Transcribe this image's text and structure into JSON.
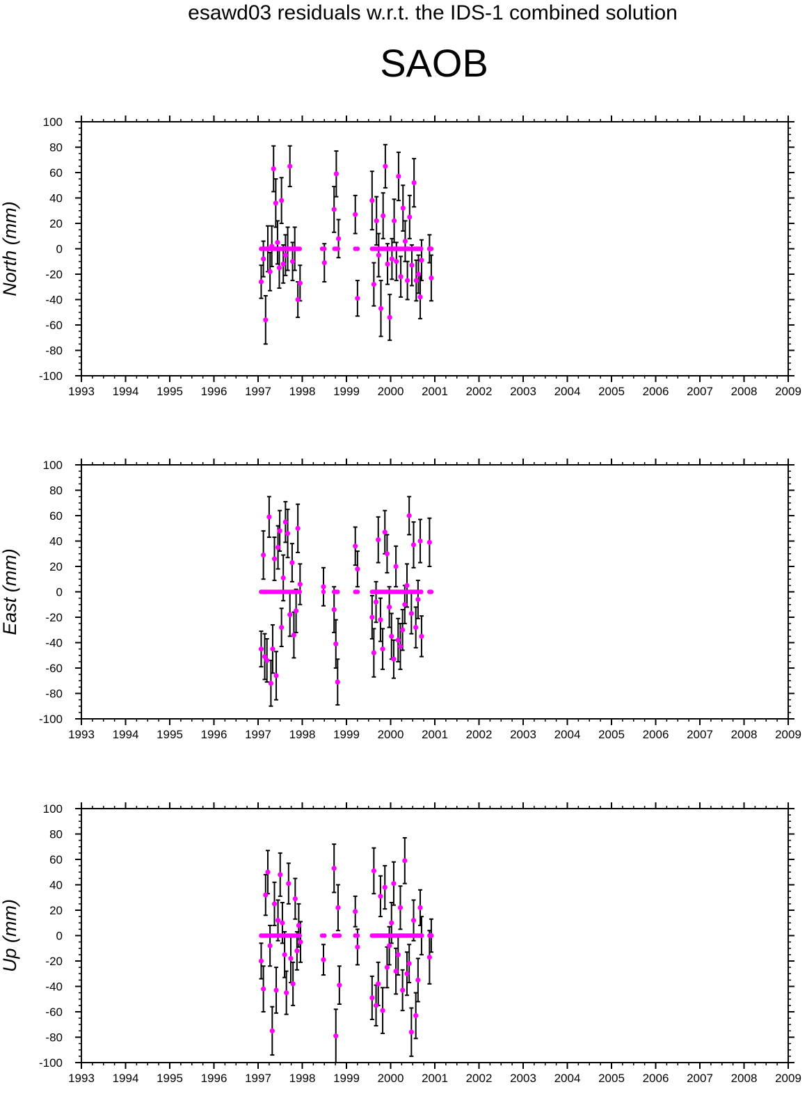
{
  "header": {
    "title": "esawd03 residuals w.r.t. the IDS-1 combined solution",
    "subtitle": "SAOB"
  },
  "colors": {
    "marker": "#ff00ff",
    "errorbar": "#000000",
    "axis": "#000000"
  },
  "chart_data": [
    {
      "type": "scatter",
      "ylabel": "North (mm)",
      "xlim": [
        1993,
        2009
      ],
      "ylim": [
        -100,
        100
      ],
      "xticks": [
        "1993",
        "1994",
        "1995",
        "1996",
        "1997",
        "1998",
        "1999",
        "2000",
        "2001",
        "2002",
        "2003",
        "2004",
        "2005",
        "2006",
        "2007",
        "2008",
        "2009"
      ],
      "yticks": [
        "100",
        "80",
        "60",
        "40",
        "20",
        "0",
        "-20",
        "-40",
        "-60",
        "-80",
        "-100"
      ],
      "series": [
        {
          "x": [
            1997.07,
            1997.12,
            1997.17,
            1997.22,
            1997.27,
            1997.31,
            1997.35,
            1997.4,
            1997.44,
            1997.48,
            1997.53,
            1997.57,
            1997.62,
            1997.67,
            1997.72,
            1997.78,
            1997.83,
            1997.9,
            1997.95,
            1998.5,
            1998.72,
            1998.77,
            1998.82,
            1999.2,
            1999.25,
            1999.58,
            1999.62,
            1999.68,
            1999.73,
            1999.78,
            1999.83,
            1999.88,
            1999.93,
            1999.98,
            2000.03,
            2000.08,
            2000.13,
            2000.18,
            2000.23,
            2000.28,
            2000.33,
            2000.38,
            2000.43,
            2000.48,
            2000.53,
            2000.58,
            2000.63,
            2000.67,
            2000.7,
            2000.88,
            2000.92
          ],
          "y": [
            -26,
            -8,
            -56,
            0,
            -18,
            2,
            63,
            36,
            5,
            -15,
            38,
            -12,
            -5,
            0,
            65,
            -10,
            0,
            -40,
            -27,
            -11,
            31,
            59,
            8,
            27,
            -39,
            38,
            -28,
            22,
            -5,
            -47,
            26,
            65,
            -12,
            -54,
            -8,
            22,
            -10,
            57,
            -22,
            32,
            6,
            -25,
            25,
            -13,
            52,
            -25,
            -20,
            -38,
            -9,
            0,
            -23
          ],
          "err": [
            13,
            14,
            19,
            18,
            15,
            16,
            18,
            19,
            17,
            16,
            18,
            15,
            16,
            17,
            16,
            15,
            17,
            14,
            14,
            15,
            18,
            18,
            15,
            15,
            14,
            23,
            17,
            19,
            17,
            22,
            18,
            17,
            16,
            18,
            16,
            17,
            15,
            19,
            16,
            18,
            16,
            15,
            17,
            16,
            19,
            16,
            15,
            17,
            16,
            11,
            18
          ],
          "zeros": [
            1997.07,
            1997.1,
            1997.14,
            1997.18,
            1997.22,
            1997.26,
            1997.3,
            1997.34,
            1997.38,
            1997.42,
            1997.46,
            1997.5,
            1997.54,
            1997.58,
            1997.62,
            1997.66,
            1997.7,
            1997.74,
            1997.78,
            1997.82,
            1997.86,
            1997.9,
            1997.94,
            1998.45,
            1998.5,
            1998.73,
            1998.77,
            1998.81,
            1999.2,
            1999.25,
            1999.58,
            1999.61,
            1999.64,
            1999.67,
            1999.7,
            1999.73,
            1999.76,
            1999.79,
            1999.82,
            1999.85,
            1999.88,
            1999.91,
            1999.94,
            1999.97,
            2000.0,
            2000.03,
            2000.06,
            2000.09,
            2000.12,
            2000.15,
            2000.18,
            2000.21,
            2000.24,
            2000.27,
            2000.3,
            2000.33,
            2000.36,
            2000.39,
            2000.42,
            2000.45,
            2000.48,
            2000.51,
            2000.54,
            2000.57,
            2000.6,
            2000.63,
            2000.66,
            2000.69,
            2000.88,
            2000.92
          ]
        }
      ]
    },
    {
      "type": "scatter",
      "ylabel": "East (mm)",
      "xlim": [
        1993,
        2009
      ],
      "ylim": [
        -100,
        100
      ],
      "xticks": [
        "1993",
        "1994",
        "1995",
        "1996",
        "1997",
        "1998",
        "1999",
        "2000",
        "2001",
        "2002",
        "2003",
        "2004",
        "2005",
        "2006",
        "2007",
        "2008",
        "2009"
      ],
      "yticks": [
        "100",
        "80",
        "60",
        "40",
        "20",
        "0",
        "-20",
        "-40",
        "-60",
        "-80",
        "-100"
      ],
      "series": [
        {
          "x": [
            1997.07,
            1997.12,
            1997.15,
            1997.2,
            1997.25,
            1997.29,
            1997.33,
            1997.37,
            1997.41,
            1997.45,
            1997.49,
            1997.53,
            1997.57,
            1997.62,
            1997.67,
            1997.72,
            1997.77,
            1997.81,
            1997.86,
            1997.9,
            1997.95,
            1998.48,
            1998.72,
            1998.76,
            1998.8,
            1999.2,
            1999.25,
            1999.58,
            1999.62,
            1999.67,
            1999.72,
            1999.77,
            1999.82,
            1999.87,
            1999.92,
            1999.97,
            2000.02,
            2000.07,
            2000.12,
            2000.17,
            2000.22,
            2000.27,
            2000.32,
            2000.37,
            2000.42,
            2000.47,
            2000.52,
            2000.57,
            2000.62,
            2000.67,
            2000.7,
            2000.88
          ],
          "y": [
            -45,
            29,
            -51,
            -54,
            59,
            -72,
            -45,
            26,
            -66,
            35,
            48,
            -28,
            11,
            55,
            46,
            -18,
            23,
            -34,
            -15,
            50,
            6,
            4,
            -14,
            -41,
            -71,
            36,
            18,
            -20,
            -48,
            -8,
            41,
            -22,
            -45,
            47,
            30,
            -12,
            -35,
            -53,
            20,
            -38,
            -43,
            -30,
            -10,
            5,
            60,
            -17,
            37,
            -28,
            -6,
            40,
            -35,
            39
          ],
          "err": [
            14,
            19,
            18,
            17,
            16,
            18,
            19,
            17,
            19,
            17,
            16,
            15,
            18,
            16,
            19,
            17,
            15,
            18,
            17,
            19,
            16,
            15,
            18,
            19,
            18,
            15,
            14,
            17,
            19,
            16,
            18,
            17,
            16,
            17,
            15,
            16,
            18,
            15,
            16,
            17,
            18,
            16,
            15,
            17,
            15,
            16,
            18,
            16,
            15,
            17,
            16,
            19
          ],
          "zeros": [
            1997.07,
            1997.1,
            1997.14,
            1997.18,
            1997.22,
            1997.26,
            1997.3,
            1997.34,
            1997.38,
            1997.42,
            1997.46,
            1997.5,
            1997.54,
            1997.58,
            1997.62,
            1997.66,
            1997.7,
            1997.74,
            1997.78,
            1997.82,
            1997.86,
            1997.9,
            1997.94,
            1998.48,
            1998.72,
            1998.76,
            1998.8,
            1999.2,
            1999.25,
            1999.58,
            1999.61,
            1999.64,
            1999.67,
            1999.7,
            1999.73,
            1999.76,
            1999.79,
            1999.82,
            1999.85,
            1999.88,
            1999.91,
            1999.94,
            1999.97,
            2000.0,
            2000.03,
            2000.06,
            2000.09,
            2000.12,
            2000.15,
            2000.18,
            2000.21,
            2000.24,
            2000.27,
            2000.3,
            2000.33,
            2000.36,
            2000.39,
            2000.42,
            2000.45,
            2000.48,
            2000.51,
            2000.54,
            2000.57,
            2000.6,
            2000.63,
            2000.66,
            2000.69,
            2000.88,
            2000.92
          ]
        }
      ]
    },
    {
      "type": "scatter",
      "ylabel": "Up (mm)",
      "xlim": [
        1993,
        2009
      ],
      "ylim": [
        -100,
        100
      ],
      "xticks": [
        "1993",
        "1994",
        "1995",
        "1996",
        "1997",
        "1998",
        "1999",
        "2000",
        "2001",
        "2002",
        "2003",
        "2004",
        "2005",
        "2006",
        "2007",
        "2008",
        "2009"
      ],
      "yticks": [
        "100",
        "80",
        "60",
        "40",
        "20",
        "0",
        "-20",
        "-40",
        "-60",
        "-80",
        "-100"
      ],
      "series": [
        {
          "x": [
            1997.07,
            1997.12,
            1997.17,
            1997.22,
            1997.27,
            1997.32,
            1997.37,
            1997.41,
            1997.45,
            1997.5,
            1997.55,
            1997.6,
            1997.64,
            1997.69,
            1997.74,
            1997.79,
            1997.84,
            1997.88,
            1997.92,
            1997.96,
            1998.48,
            1998.72,
            1998.76,
            1998.81,
            1998.84,
            1999.2,
            1999.25,
            1999.58,
            1999.62,
            1999.67,
            1999.72,
            1999.77,
            1999.82,
            1999.87,
            1999.92,
            1999.97,
            2000.02,
            2000.07,
            2000.12,
            2000.17,
            2000.22,
            2000.27,
            2000.32,
            2000.37,
            2000.42,
            2000.47,
            2000.52,
            2000.57,
            2000.62,
            2000.67,
            2000.7,
            2000.88,
            2000.92
          ],
          "y": [
            -20,
            -42,
            32,
            50,
            -8,
            -75,
            25,
            -43,
            12,
            48,
            10,
            -15,
            -45,
            41,
            -18,
            -38,
            29,
            -12,
            8,
            -5,
            -19,
            53,
            -79,
            22,
            -39,
            19,
            -9,
            -49,
            51,
            -55,
            -38,
            31,
            -59,
            38,
            -25,
            -8,
            10,
            41,
            -28,
            -15,
            22,
            -43,
            59,
            -30,
            -22,
            -76,
            12,
            -63,
            -35,
            22,
            0,
            -17,
            0
          ],
          "err": [
            14,
            18,
            16,
            17,
            16,
            19,
            17,
            18,
            16,
            17,
            16,
            18,
            17,
            16,
            19,
            17,
            16,
            15,
            17,
            16,
            12,
            19,
            21,
            18,
            15,
            12,
            14,
            17,
            18,
            16,
            17,
            16,
            18,
            17,
            16,
            15,
            16,
            17,
            18,
            16,
            17,
            16,
            18,
            17,
            15,
            19,
            16,
            18,
            17,
            14,
            15,
            21,
            13
          ],
          "zeros": [
            1997.07,
            1997.1,
            1997.14,
            1997.18,
            1997.22,
            1997.26,
            1997.3,
            1997.34,
            1997.38,
            1997.42,
            1997.46,
            1997.5,
            1997.54,
            1997.58,
            1997.62,
            1997.66,
            1997.7,
            1997.74,
            1997.78,
            1997.82,
            1997.86,
            1997.9,
            1997.94,
            1998.45,
            1998.5,
            1998.72,
            1998.76,
            1998.8,
            1998.84,
            1999.2,
            1999.25,
            1999.58,
            1999.61,
            1999.64,
            1999.67,
            1999.7,
            1999.73,
            1999.76,
            1999.79,
            1999.82,
            1999.85,
            1999.88,
            1999.91,
            1999.94,
            1999.97,
            2000.0,
            2000.03,
            2000.06,
            2000.09,
            2000.12,
            2000.15,
            2000.18,
            2000.21,
            2000.24,
            2000.27,
            2000.3,
            2000.33,
            2000.36,
            2000.39,
            2000.42,
            2000.45,
            2000.48,
            2000.51,
            2000.54,
            2000.57,
            2000.6,
            2000.63,
            2000.66,
            2000.69,
            2000.88,
            2000.92
          ]
        }
      ]
    }
  ]
}
